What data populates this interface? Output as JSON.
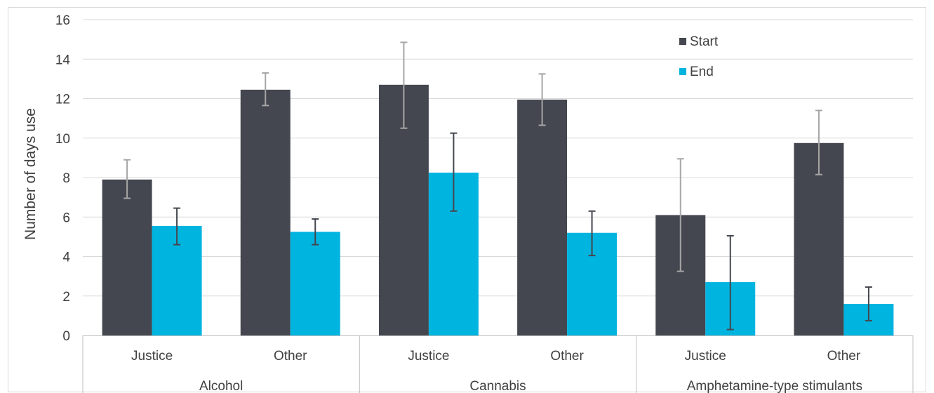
{
  "chart_data": {
    "type": "bar",
    "title": "",
    "xlabel": "",
    "ylabel": "Number  of days use",
    "ylim": [
      0,
      16
    ],
    "yticks": [
      0,
      2,
      4,
      6,
      8,
      10,
      12,
      14,
      16
    ],
    "grid": true,
    "legend_position": "top-right",
    "groups": [
      {
        "label": "Alcohol",
        "categories": [
          "Justice",
          "Other"
        ]
      },
      {
        "label": "Cannabis",
        "categories": [
          "Justice",
          "Other"
        ]
      },
      {
        "label": "Amphetamine-type stimulants",
        "categories": [
          "Justice",
          "Other"
        ]
      }
    ],
    "categories": [
      "Justice",
      "Other",
      "Justice",
      "Other",
      "Justice",
      "Other"
    ],
    "series": [
      {
        "name": "Start",
        "color": "#44474f",
        "error_color": "#a6a6a6",
        "values": [
          7.9,
          12.45,
          12.7,
          11.95,
          6.1,
          9.75
        ],
        "error_low": [
          6.95,
          11.65,
          10.5,
          10.65,
          3.25,
          8.15
        ],
        "error_high": [
          8.9,
          13.3,
          14.85,
          13.25,
          8.95,
          11.4
        ]
      },
      {
        "name": "End",
        "color": "#00b4e0",
        "error_color": "#44474f",
        "values": [
          5.55,
          5.25,
          8.25,
          5.2,
          2.7,
          1.6
        ],
        "error_low": [
          4.6,
          4.6,
          6.3,
          4.05,
          0.3,
          0.75
        ],
        "error_high": [
          6.45,
          5.9,
          10.25,
          6.3,
          5.05,
          2.45
        ]
      }
    ]
  }
}
